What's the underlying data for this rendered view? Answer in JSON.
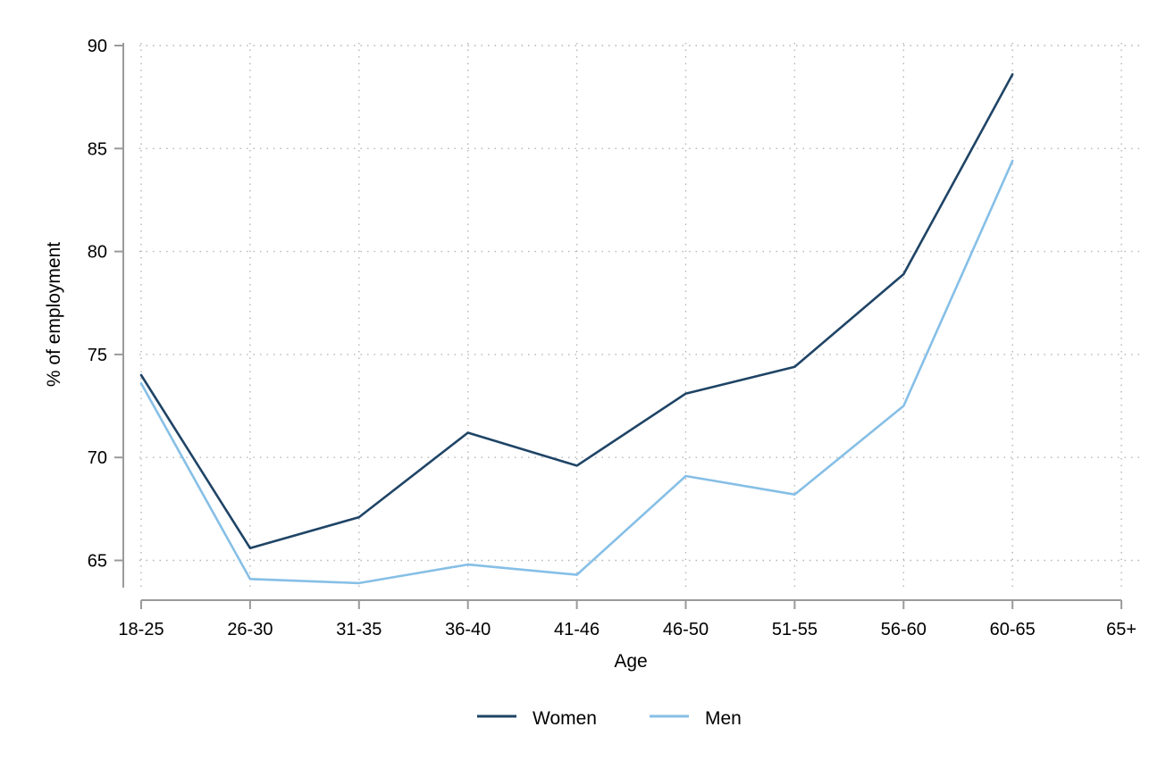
{
  "chart_data": {
    "type": "line",
    "title": "",
    "xlabel": "Age",
    "ylabel": "% of employment",
    "categories": [
      "18-25",
      "26-30",
      "31-35",
      "36-40",
      "41-46",
      "46-50",
      "51-55",
      "56-60",
      "60-65",
      "65+"
    ],
    "ylim": [
      63,
      90
    ],
    "yticks": [
      65,
      70,
      75,
      80,
      85,
      90
    ],
    "grid": true,
    "legend_position": "bottom",
    "series": [
      {
        "name": "Women",
        "color": "#1f4466",
        "values": [
          74.0,
          65.6,
          67.1,
          71.2,
          69.6,
          73.1,
          74.4,
          78.9,
          88.6,
          null
        ]
      },
      {
        "name": "Men",
        "color": "#86bfe6",
        "values": [
          73.6,
          64.1,
          63.9,
          64.8,
          64.3,
          69.1,
          68.2,
          72.5,
          84.4,
          null
        ]
      }
    ]
  }
}
